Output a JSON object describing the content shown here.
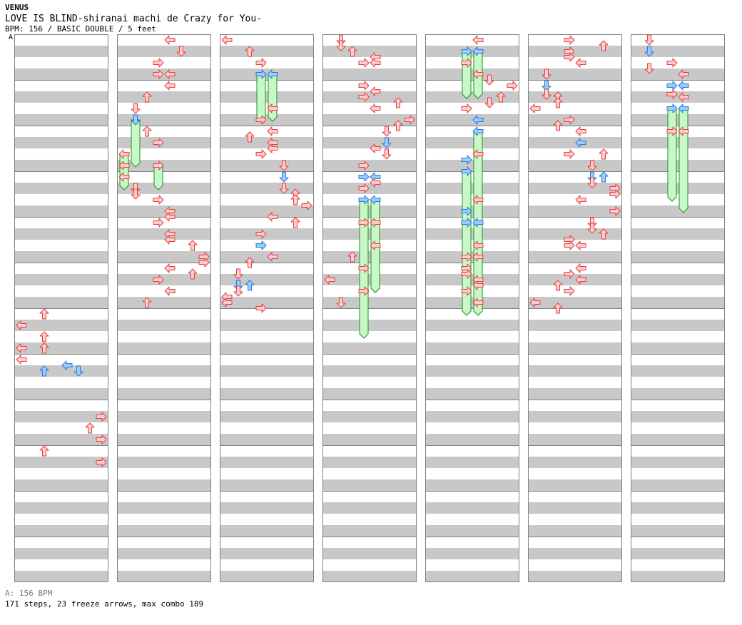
{
  "header": {
    "artist": "VENUS",
    "title": "LOVE IS BLIND-shiranai machi de Crazy for You-",
    "meta": "BPM: 156 / BASIC DOUBLE / 5 feet",
    "bpm_marker_label": "A"
  },
  "footer": {
    "bpm_legend": "A: 156 BPM",
    "stats": "171 steps, 23 freeze arrows, max combo 189"
  },
  "colors": {
    "stripe": "#c8c8c8",
    "border": "#808080",
    "arrow_red_fill": "#ffcccc",
    "arrow_red_stroke": "#e04040",
    "arrow_blue_fill": "#99ccff",
    "arrow_blue_stroke": "#2a78d8",
    "freeze_fill": "#c8f8c8",
    "freeze_stroke": "#209020",
    "bpm_line": "#58a8ff"
  },
  "chart_data": {
    "type": "step-chart",
    "style": "BASIC DOUBLE",
    "difficulty_feet": 5,
    "bpm": 156,
    "lanes": [
      "P1-left",
      "P1-down",
      "P1-up",
      "P1-right",
      "P2-left",
      "P2-down",
      "P2-up",
      "P2-right"
    ],
    "measures_per_column": 12,
    "beats_per_measure": 4,
    "column_count": 7,
    "steps_total": 171,
    "freeze_arrows_total": 23,
    "max_combo": 189,
    "notes": [
      {
        "c": 0,
        "b": 24,
        "l": 2,
        "col": "r"
      },
      {
        "c": 0,
        "b": 25,
        "l": 0,
        "col": "r"
      },
      {
        "c": 0,
        "b": 26,
        "l": 2,
        "col": "r"
      },
      {
        "c": 0,
        "b": 27,
        "l": 0,
        "col": "r"
      },
      {
        "c": 0,
        "b": 27,
        "l": 2,
        "col": "r"
      },
      {
        "c": 0,
        "b": 28,
        "l": 0,
        "col": "r"
      },
      {
        "c": 0,
        "b": 28.5,
        "l": 4,
        "col": "b"
      },
      {
        "c": 0,
        "b": 29,
        "l": 2,
        "col": "b"
      },
      {
        "c": 0,
        "b": 29,
        "l": 5,
        "col": "b"
      },
      {
        "c": 0,
        "b": 33,
        "l": 7,
        "col": "r"
      },
      {
        "c": 0,
        "b": 34,
        "l": 6,
        "col": "r"
      },
      {
        "c": 0,
        "b": 35,
        "l": 7,
        "col": "r"
      },
      {
        "c": 0,
        "b": 36,
        "l": 2,
        "col": "r"
      },
      {
        "c": 0,
        "b": 37,
        "l": 7,
        "col": "r"
      },
      {
        "c": 1,
        "b": 0,
        "l": 4,
        "col": "r"
      },
      {
        "c": 1,
        "b": 1,
        "l": 5,
        "col": "r"
      },
      {
        "c": 1,
        "b": 2,
        "l": 3,
        "col": "r"
      },
      {
        "c": 1,
        "b": 3,
        "l": 3,
        "col": "r"
      },
      {
        "c": 1,
        "b": 3,
        "l": 4,
        "col": "r"
      },
      {
        "c": 1,
        "b": 4,
        "l": 4,
        "col": "r"
      },
      {
        "c": 1,
        "b": 5,
        "l": 2,
        "col": "r"
      },
      {
        "c": 1,
        "b": 6,
        "l": 1,
        "col": "r"
      },
      {
        "c": 1,
        "b": 7,
        "l": 1,
        "col": "b",
        "f": 1
      },
      {
        "c": 1,
        "b": 8,
        "l": 2,
        "col": "r"
      },
      {
        "c": 1,
        "b": 9,
        "l": 3,
        "col": "r"
      },
      {
        "c": 1,
        "b": 10,
        "l": 0,
        "col": "r",
        "f": 0.5
      },
      {
        "c": 1,
        "b": 11,
        "l": 0,
        "col": "r",
        "f": 0.5
      },
      {
        "c": 1,
        "b": 11,
        "l": 3,
        "col": "r",
        "f": 0.5
      },
      {
        "c": 1,
        "b": 12,
        "l": 0,
        "col": "r"
      },
      {
        "c": 1,
        "b": 13,
        "l": 1,
        "col": "r"
      },
      {
        "c": 1,
        "b": 13.5,
        "l": 1,
        "col": "r"
      },
      {
        "c": 1,
        "b": 14,
        "l": 3,
        "col": "r"
      },
      {
        "c": 1,
        "b": 15,
        "l": 4,
        "col": "r"
      },
      {
        "c": 1,
        "b": 15.5,
        "l": 4,
        "col": "r"
      },
      {
        "c": 1,
        "b": 16,
        "l": 3,
        "col": "r"
      },
      {
        "c": 1,
        "b": 17,
        "l": 4,
        "col": "r"
      },
      {
        "c": 1,
        "b": 17.5,
        "l": 4,
        "col": "r"
      },
      {
        "c": 1,
        "b": 18,
        "l": 6,
        "col": "r"
      },
      {
        "c": 1,
        "b": 19,
        "l": 7,
        "col": "r"
      },
      {
        "c": 1,
        "b": 19.5,
        "l": 7,
        "col": "r"
      },
      {
        "c": 1,
        "b": 20,
        "l": 4,
        "col": "r"
      },
      {
        "c": 1,
        "b": 20.5,
        "l": 6,
        "col": "r"
      },
      {
        "c": 1,
        "b": 21,
        "l": 3,
        "col": "r"
      },
      {
        "c": 1,
        "b": 22,
        "l": 4,
        "col": "r"
      },
      {
        "c": 1,
        "b": 23,
        "l": 2,
        "col": "r"
      },
      {
        "c": 2,
        "b": 0,
        "l": 0,
        "col": "r"
      },
      {
        "c": 2,
        "b": 1,
        "l": 2,
        "col": "r"
      },
      {
        "c": 2,
        "b": 2,
        "l": 3,
        "col": "r"
      },
      {
        "c": 2,
        "b": 3,
        "l": 3,
        "col": "b",
        "f": 1
      },
      {
        "c": 2,
        "b": 3,
        "l": 4,
        "col": "b",
        "f": 1
      },
      {
        "c": 2,
        "b": 6,
        "l": 4,
        "col": "r"
      },
      {
        "c": 2,
        "b": 7,
        "l": 3,
        "col": "r"
      },
      {
        "c": 2,
        "b": 8,
        "l": 4,
        "col": "r"
      },
      {
        "c": 2,
        "b": 8.5,
        "l": 2,
        "col": "r"
      },
      {
        "c": 2,
        "b": 9,
        "l": 4,
        "col": "r"
      },
      {
        "c": 2,
        "b": 9.5,
        "l": 4,
        "col": "r"
      },
      {
        "c": 2,
        "b": 10,
        "l": 3,
        "col": "r"
      },
      {
        "c": 2,
        "b": 11,
        "l": 5,
        "col": "r"
      },
      {
        "c": 2,
        "b": 12,
        "l": 5,
        "col": "b"
      },
      {
        "c": 2,
        "b": 13,
        "l": 5,
        "col": "r"
      },
      {
        "c": 2,
        "b": 13.5,
        "l": 6,
        "col": "r"
      },
      {
        "c": 2,
        "b": 14,
        "l": 6,
        "col": "r"
      },
      {
        "c": 2,
        "b": 14.5,
        "l": 7,
        "col": "r"
      },
      {
        "c": 2,
        "b": 15.5,
        "l": 4,
        "col": "r"
      },
      {
        "c": 2,
        "b": 16,
        "l": 6,
        "col": "r"
      },
      {
        "c": 2,
        "b": 17,
        "l": 3,
        "col": "r"
      },
      {
        "c": 2,
        "b": 18,
        "l": 3,
        "col": "b"
      },
      {
        "c": 2,
        "b": 19,
        "l": 4,
        "col": "r"
      },
      {
        "c": 2,
        "b": 19.5,
        "l": 2,
        "col": "r"
      },
      {
        "c": 2,
        "b": 20.5,
        "l": 1,
        "col": "r"
      },
      {
        "c": 2,
        "b": 21.5,
        "l": 1,
        "col": "b"
      },
      {
        "c": 2,
        "b": 21.5,
        "l": 2,
        "col": "b"
      },
      {
        "c": 2,
        "b": 22,
        "l": 1,
        "col": "r"
      },
      {
        "c": 2,
        "b": 22.5,
        "l": 0,
        "col": "r"
      },
      {
        "c": 2,
        "b": 23,
        "l": 0,
        "col": "r"
      },
      {
        "c": 2,
        "b": 23.5,
        "l": 3,
        "col": "r"
      },
      {
        "c": 3,
        "b": 0,
        "l": 1,
        "col": "r"
      },
      {
        "c": 3,
        "b": 0.5,
        "l": 1,
        "col": "r"
      },
      {
        "c": 3,
        "b": 1,
        "l": 2,
        "col": "r"
      },
      {
        "c": 3,
        "b": 1.5,
        "l": 4,
        "col": "r"
      },
      {
        "c": 3,
        "b": 2,
        "l": 3,
        "col": "r"
      },
      {
        "c": 3,
        "b": 2,
        "l": 4,
        "col": "r"
      },
      {
        "c": 3,
        "b": 4,
        "l": 3,
        "col": "r"
      },
      {
        "c": 3,
        "b": 4.5,
        "l": 4,
        "col": "r"
      },
      {
        "c": 3,
        "b": 5,
        "l": 3,
        "col": "r"
      },
      {
        "c": 3,
        "b": 5.5,
        "l": 6,
        "col": "r"
      },
      {
        "c": 3,
        "b": 6,
        "l": 4,
        "col": "r"
      },
      {
        "c": 3,
        "b": 7,
        "l": 7,
        "col": "r"
      },
      {
        "c": 3,
        "b": 7.5,
        "l": 6,
        "col": "r"
      },
      {
        "c": 3,
        "b": 8,
        "l": 5,
        "col": "r"
      },
      {
        "c": 3,
        "b": 9,
        "l": 5,
        "col": "b"
      },
      {
        "c": 3,
        "b": 9.5,
        "l": 4,
        "col": "r"
      },
      {
        "c": 3,
        "b": 10,
        "l": 5,
        "col": "r"
      },
      {
        "c": 3,
        "b": 11,
        "l": 3,
        "col": "r"
      },
      {
        "c": 3,
        "b": 12,
        "l": 3,
        "col": "b"
      },
      {
        "c": 3,
        "b": 12,
        "l": 4,
        "col": "b"
      },
      {
        "c": 3,
        "b": 12.5,
        "l": 4,
        "col": "r"
      },
      {
        "c": 3,
        "b": 13,
        "l": 3,
        "col": "r"
      },
      {
        "c": 3,
        "b": 14,
        "l": 3,
        "col": "b",
        "f": 2
      },
      {
        "c": 3,
        "b": 14,
        "l": 4,
        "col": "b",
        "f": 2
      },
      {
        "c": 3,
        "b": 16,
        "l": 3,
        "col": "r",
        "f": 1.5
      },
      {
        "c": 3,
        "b": 16,
        "l": 4,
        "col": "r",
        "f": 1.5
      },
      {
        "c": 3,
        "b": 18,
        "l": 4,
        "col": "r",
        "f": 1
      },
      {
        "c": 3,
        "b": 19,
        "l": 2,
        "col": "r"
      },
      {
        "c": 3,
        "b": 20,
        "l": 3,
        "col": "r",
        "f": 1
      },
      {
        "c": 3,
        "b": 21,
        "l": 0,
        "col": "r"
      },
      {
        "c": 3,
        "b": 22,
        "l": 3,
        "col": "r",
        "f": 1
      },
      {
        "c": 3,
        "b": 23,
        "l": 1,
        "col": "r"
      },
      {
        "c": 4,
        "b": 0,
        "l": 4,
        "col": "r"
      },
      {
        "c": 4,
        "b": 1,
        "l": 3,
        "col": "b",
        "f": 1
      },
      {
        "c": 4,
        "b": 1,
        "l": 4,
        "col": "b",
        "f": 1
      },
      {
        "c": 4,
        "b": 2,
        "l": 3,
        "col": "r"
      },
      {
        "c": 4,
        "b": 3,
        "l": 4,
        "col": "r"
      },
      {
        "c": 4,
        "b": 3.5,
        "l": 5,
        "col": "r"
      },
      {
        "c": 4,
        "b": 4,
        "l": 7,
        "col": "r"
      },
      {
        "c": 4,
        "b": 5,
        "l": 6,
        "col": "r"
      },
      {
        "c": 4,
        "b": 5.5,
        "l": 5,
        "col": "r"
      },
      {
        "c": 4,
        "b": 6,
        "l": 3,
        "col": "r"
      },
      {
        "c": 4,
        "b": 7,
        "l": 4,
        "col": "b"
      },
      {
        "c": 4,
        "b": 8,
        "l": 4,
        "col": "b",
        "f": 2
      },
      {
        "c": 4,
        "b": 10,
        "l": 4,
        "col": "r"
      },
      {
        "c": 4,
        "b": 10.5,
        "l": 3,
        "col": "b"
      },
      {
        "c": 4,
        "b": 11.5,
        "l": 3,
        "col": "b",
        "f": 2
      },
      {
        "c": 4,
        "b": 14,
        "l": 4,
        "col": "r"
      },
      {
        "c": 4,
        "b": 15,
        "l": 3,
        "col": "b"
      },
      {
        "c": 4,
        "b": 16,
        "l": 3,
        "col": "b",
        "f": 2
      },
      {
        "c": 4,
        "b": 16,
        "l": 4,
        "col": "b",
        "f": 2
      },
      {
        "c": 4,
        "b": 18,
        "l": 4,
        "col": "r"
      },
      {
        "c": 4,
        "b": 19,
        "l": 3,
        "col": "r"
      },
      {
        "c": 4,
        "b": 19,
        "l": 4,
        "col": "r"
      },
      {
        "c": 4,
        "b": 20,
        "l": 3,
        "col": "r"
      },
      {
        "c": 4,
        "b": 20.5,
        "l": 3,
        "col": "r"
      },
      {
        "c": 4,
        "b": 21,
        "l": 4,
        "col": "r"
      },
      {
        "c": 4,
        "b": 21.5,
        "l": 4,
        "col": "r"
      },
      {
        "c": 4,
        "b": 22,
        "l": 3,
        "col": "r"
      },
      {
        "c": 4,
        "b": 23,
        "l": 4,
        "col": "r"
      },
      {
        "c": 5,
        "b": 0,
        "l": 3,
        "col": "r"
      },
      {
        "c": 5,
        "b": 0.5,
        "l": 6,
        "col": "r"
      },
      {
        "c": 5,
        "b": 1,
        "l": 3,
        "col": "r"
      },
      {
        "c": 5,
        "b": 1.5,
        "l": 3,
        "col": "r"
      },
      {
        "c": 5,
        "b": 2,
        "l": 4,
        "col": "r"
      },
      {
        "c": 5,
        "b": 3,
        "l": 1,
        "col": "r"
      },
      {
        "c": 5,
        "b": 4,
        "l": 1,
        "col": "b"
      },
      {
        "c": 5,
        "b": 4.75,
        "l": 1,
        "col": "r"
      },
      {
        "c": 5,
        "b": 5,
        "l": 2,
        "col": "r"
      },
      {
        "c": 5,
        "b": 5.5,
        "l": 2,
        "col": "r"
      },
      {
        "c": 5,
        "b": 6,
        "l": 0,
        "col": "r"
      },
      {
        "c": 5,
        "b": 7,
        "l": 3,
        "col": "r"
      },
      {
        "c": 5,
        "b": 7.5,
        "l": 2,
        "col": "r"
      },
      {
        "c": 5,
        "b": 8,
        "l": 4,
        "col": "r"
      },
      {
        "c": 5,
        "b": 9,
        "l": 4,
        "col": "b"
      },
      {
        "c": 5,
        "b": 10,
        "l": 3,
        "col": "r"
      },
      {
        "c": 5,
        "b": 10,
        "l": 6,
        "col": "r"
      },
      {
        "c": 5,
        "b": 11,
        "l": 5,
        "col": "r"
      },
      {
        "c": 5,
        "b": 12,
        "l": 5,
        "col": "b"
      },
      {
        "c": 5,
        "b": 12,
        "l": 6,
        "col": "b"
      },
      {
        "c": 5,
        "b": 12.5,
        "l": 5,
        "col": "r"
      },
      {
        "c": 5,
        "b": 13,
        "l": 7,
        "col": "r"
      },
      {
        "c": 5,
        "b": 13.5,
        "l": 7,
        "col": "r"
      },
      {
        "c": 5,
        "b": 14,
        "l": 4,
        "col": "r"
      },
      {
        "c": 5,
        "b": 15,
        "l": 7,
        "col": "r"
      },
      {
        "c": 5,
        "b": 16,
        "l": 5,
        "col": "r"
      },
      {
        "c": 5,
        "b": 16.5,
        "l": 5,
        "col": "r"
      },
      {
        "c": 5,
        "b": 17,
        "l": 6,
        "col": "r"
      },
      {
        "c": 5,
        "b": 17.5,
        "l": 3,
        "col": "r"
      },
      {
        "c": 5,
        "b": 18,
        "l": 3,
        "col": "r"
      },
      {
        "c": 5,
        "b": 18,
        "l": 4,
        "col": "r"
      },
      {
        "c": 5,
        "b": 20,
        "l": 4,
        "col": "r"
      },
      {
        "c": 5,
        "b": 20.5,
        "l": 3,
        "col": "r"
      },
      {
        "c": 5,
        "b": 21,
        "l": 4,
        "col": "r"
      },
      {
        "c": 5,
        "b": 21.5,
        "l": 2,
        "col": "r"
      },
      {
        "c": 5,
        "b": 22,
        "l": 3,
        "col": "r"
      },
      {
        "c": 5,
        "b": 23,
        "l": 0,
        "col": "r"
      },
      {
        "c": 5,
        "b": 23.5,
        "l": 2,
        "col": "r"
      },
      {
        "c": 6,
        "b": 0,
        "l": 1,
        "col": "r"
      },
      {
        "c": 6,
        "b": 1,
        "l": 1,
        "col": "b"
      },
      {
        "c": 6,
        "b": 2,
        "l": 3,
        "col": "r"
      },
      {
        "c": 6,
        "b": 2.5,
        "l": 1,
        "col": "r"
      },
      {
        "c": 6,
        "b": 3,
        "l": 4,
        "col": "r"
      },
      {
        "c": 6,
        "b": 4,
        "l": 3,
        "col": "b"
      },
      {
        "c": 6,
        "b": 4,
        "l": 4,
        "col": "b"
      },
      {
        "c": 6,
        "b": 4.75,
        "l": 3,
        "col": "r"
      },
      {
        "c": 6,
        "b": 5,
        "l": 4,
        "col": "r"
      },
      {
        "c": 6,
        "b": 6,
        "l": 3,
        "col": "b",
        "f": 2
      },
      {
        "c": 6,
        "b": 6,
        "l": 4,
        "col": "b",
        "f": 2
      },
      {
        "c": 6,
        "b": 8,
        "l": 3,
        "col": "r",
        "f": 1.5
      },
      {
        "c": 6,
        "b": 8,
        "l": 4,
        "col": "r",
        "f": 1.75
      }
    ]
  }
}
